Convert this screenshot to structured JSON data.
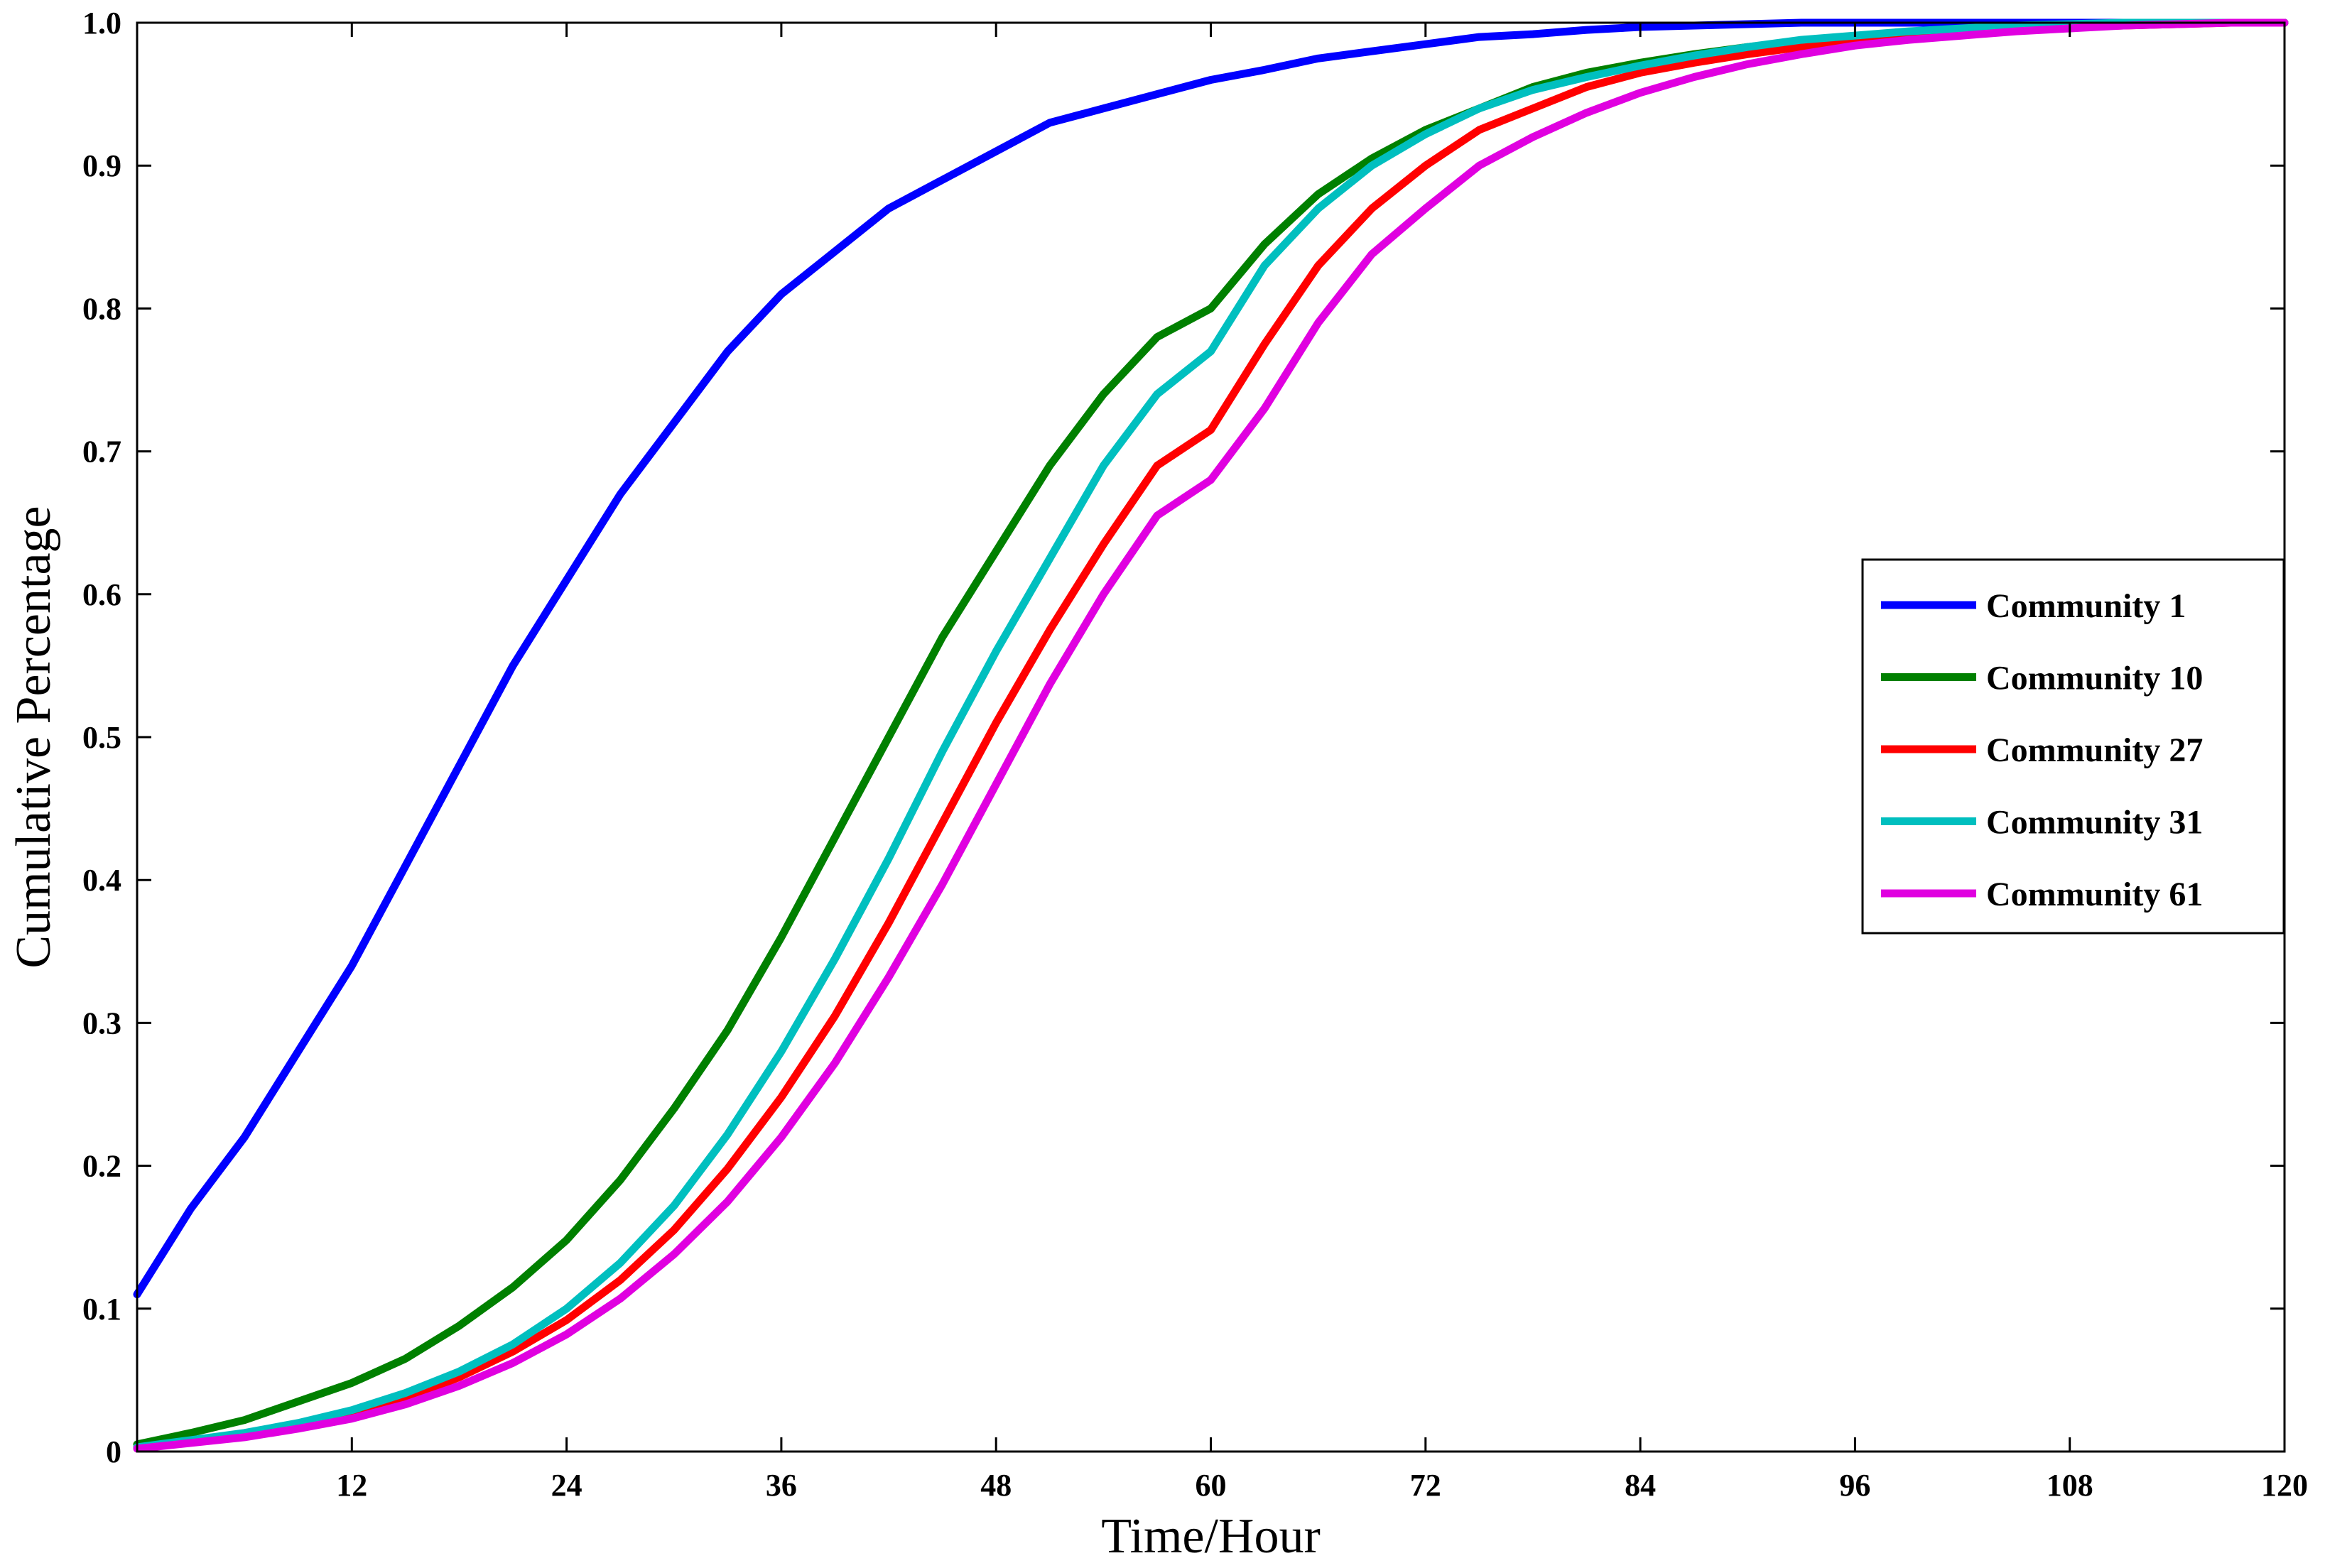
{
  "chart_data": {
    "type": "line",
    "title": "",
    "xlabel": "Time/Hour",
    "ylabel": "Cumulative Percentage",
    "xlim": [
      0,
      120
    ],
    "ylim": [
      0,
      1
    ],
    "grid": false,
    "legend_position": "center-right",
    "x_ticks": [
      12,
      24,
      36,
      48,
      60,
      72,
      84,
      96,
      108,
      120
    ],
    "x_tick_labels": [
      "12",
      "24",
      "36",
      "48",
      "60",
      "72",
      "84",
      "96",
      "108",
      "120"
    ],
    "y_ticks": [
      0,
      0.1,
      0.2,
      0.3,
      0.4,
      0.5,
      0.6,
      0.7,
      0.8,
      0.9,
      1.0
    ],
    "y_tick_labels": [
      "0",
      "0.1",
      "0.2",
      "0.3",
      "0.4",
      "0.5",
      "0.6",
      "0.7",
      "0.8",
      "0.9",
      "1.0"
    ],
    "x": [
      0,
      3,
      6,
      9,
      12,
      15,
      18,
      21,
      24,
      27,
      30,
      33,
      36,
      39,
      42,
      45,
      48,
      51,
      54,
      57,
      60,
      63,
      66,
      69,
      72,
      75,
      78,
      81,
      84,
      87,
      90,
      93,
      96,
      99,
      102,
      105,
      108,
      111,
      114,
      117,
      120
    ],
    "series": [
      {
        "name": "Community 1",
        "color": "#0000ff",
        "values": [
          0.11,
          0.17,
          0.22,
          0.28,
          0.34,
          0.41,
          0.48,
          0.55,
          0.61,
          0.67,
          0.72,
          0.77,
          0.81,
          0.84,
          0.87,
          0.89,
          0.91,
          0.93,
          0.94,
          0.95,
          0.96,
          0.967,
          0.975,
          0.98,
          0.985,
          0.99,
          0.992,
          0.995,
          0.997,
          0.998,
          0.999,
          1.0,
          1.0,
          1.0,
          1.0,
          1.0,
          1.0,
          1.0,
          1.0,
          1.0,
          1.0
        ]
      },
      {
        "name": "Community 10",
        "color": "#008000",
        "values": [
          0.005,
          0.013,
          0.022,
          0.035,
          0.048,
          0.065,
          0.088,
          0.115,
          0.148,
          0.19,
          0.24,
          0.295,
          0.36,
          0.43,
          0.5,
          0.57,
          0.63,
          0.69,
          0.74,
          0.78,
          0.8,
          0.845,
          0.88,
          0.905,
          0.925,
          0.94,
          0.955,
          0.965,
          0.972,
          0.978,
          0.983,
          0.987,
          0.99,
          0.993,
          0.995,
          0.997,
          0.998,
          0.999,
          1.0,
          1.0,
          1.0
        ]
      },
      {
        "name": "Community 27",
        "color": "#ff0000",
        "values": [
          0.003,
          0.007,
          0.012,
          0.018,
          0.026,
          0.037,
          0.052,
          0.07,
          0.092,
          0.12,
          0.155,
          0.198,
          0.248,
          0.305,
          0.37,
          0.44,
          0.51,
          0.575,
          0.635,
          0.69,
          0.715,
          0.775,
          0.83,
          0.87,
          0.9,
          0.925,
          0.94,
          0.955,
          0.965,
          0.972,
          0.978,
          0.983,
          0.987,
          0.99,
          0.993,
          0.995,
          0.997,
          0.998,
          0.999,
          1.0,
          1.0
        ]
      },
      {
        "name": "Community 31",
        "color": "#00bfbf",
        "values": [
          0.003,
          0.008,
          0.013,
          0.02,
          0.029,
          0.041,
          0.056,
          0.075,
          0.1,
          0.132,
          0.172,
          0.222,
          0.28,
          0.345,
          0.415,
          0.49,
          0.56,
          0.625,
          0.69,
          0.74,
          0.77,
          0.83,
          0.87,
          0.9,
          0.922,
          0.94,
          0.953,
          0.962,
          0.97,
          0.977,
          0.983,
          0.988,
          0.991,
          0.994,
          0.996,
          0.998,
          0.999,
          1.0,
          1.0,
          1.0,
          1.0
        ]
      },
      {
        "name": "Community 61",
        "color": "#e000e0",
        "values": [
          0.002,
          0.006,
          0.01,
          0.016,
          0.023,
          0.033,
          0.046,
          0.062,
          0.082,
          0.107,
          0.138,
          0.175,
          0.22,
          0.272,
          0.332,
          0.397,
          0.467,
          0.537,
          0.6,
          0.655,
          0.68,
          0.73,
          0.79,
          0.838,
          0.87,
          0.9,
          0.92,
          0.937,
          0.951,
          0.962,
          0.971,
          0.978,
          0.984,
          0.988,
          0.991,
          0.994,
          0.996,
          0.998,
          0.999,
          1.0,
          1.0
        ]
      }
    ]
  }
}
